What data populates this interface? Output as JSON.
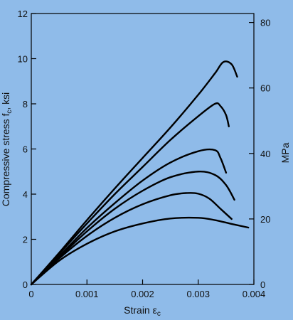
{
  "colors": {
    "background": "#8fbbe9",
    "line": "#000000",
    "text": "#111111"
  },
  "chart_data": {
    "type": "line",
    "title": "",
    "xlabel": "Strain ε",
    "xlabel_subscript": "c",
    "ylabel": "Compressive stress f",
    "ylabel_subscript": "c",
    "ylabel_unit": ", ksi",
    "y2label": "MPa",
    "xlim": [
      0,
      0.004
    ],
    "ylim": [
      0,
      12
    ],
    "y2lim": [
      0,
      82.74
    ],
    "x_ticks": [
      0,
      0.001,
      0.002,
      0.003,
      0.004
    ],
    "x_tick_labels": [
      "0",
      "0.001",
      "0.002",
      "0.003",
      "0.004"
    ],
    "y_ticks": [
      0,
      2,
      4,
      6,
      8,
      10,
      12
    ],
    "y_tick_labels": [
      "0",
      "2",
      "4",
      "6",
      "8",
      "10",
      "12"
    ],
    "y2_ticks": [
      0,
      20,
      40,
      60,
      80
    ],
    "y2_tick_labels": [
      "0",
      "20",
      "40",
      "60",
      "80"
    ],
    "grid": false,
    "legend": "none",
    "series": [
      {
        "x": [
          0,
          0.0005,
          0.001,
          0.0015,
          0.002,
          0.0025,
          0.003,
          0.0033,
          0.0036,
          0.0039
        ],
        "y": [
          0,
          1.05,
          1.8,
          2.35,
          2.7,
          2.92,
          2.95,
          2.85,
          2.68,
          2.52
        ]
      },
      {
        "x": [
          0,
          0.0005,
          0.001,
          0.0015,
          0.002,
          0.0025,
          0.0028,
          0.003,
          0.0032,
          0.0034,
          0.0036
        ],
        "y": [
          0,
          1.15,
          2.15,
          2.95,
          3.55,
          3.95,
          4.05,
          4.02,
          3.8,
          3.35,
          2.9
        ]
      },
      {
        "x": [
          0,
          0.0005,
          0.001,
          0.0015,
          0.002,
          0.0025,
          0.003,
          0.0033,
          0.0035,
          0.00365
        ],
        "y": [
          0,
          1.2,
          2.35,
          3.35,
          4.15,
          4.75,
          5.0,
          4.85,
          4.4,
          3.75
        ]
      },
      {
        "x": [
          0,
          0.0005,
          0.001,
          0.0015,
          0.002,
          0.0025,
          0.003,
          0.0033,
          0.0034,
          0.0035
        ],
        "y": [
          0,
          1.25,
          2.5,
          3.6,
          4.6,
          5.4,
          5.9,
          5.95,
          5.6,
          4.95
        ]
      },
      {
        "x": [
          0,
          0.0005,
          0.001,
          0.0015,
          0.002,
          0.0025,
          0.003,
          0.0033,
          0.0034,
          0.0035,
          0.00355
        ],
        "y": [
          0,
          1.35,
          2.7,
          4.0,
          5.2,
          6.4,
          7.45,
          8.0,
          7.9,
          7.5,
          7.0
        ]
      },
      {
        "x": [
          0,
          0.0005,
          0.001,
          0.0015,
          0.002,
          0.0025,
          0.003,
          0.0033,
          0.00345,
          0.0036,
          0.0037
        ],
        "y": [
          0,
          1.4,
          2.85,
          4.25,
          5.6,
          6.95,
          8.4,
          9.35,
          9.85,
          9.75,
          9.2
        ]
      }
    ]
  }
}
